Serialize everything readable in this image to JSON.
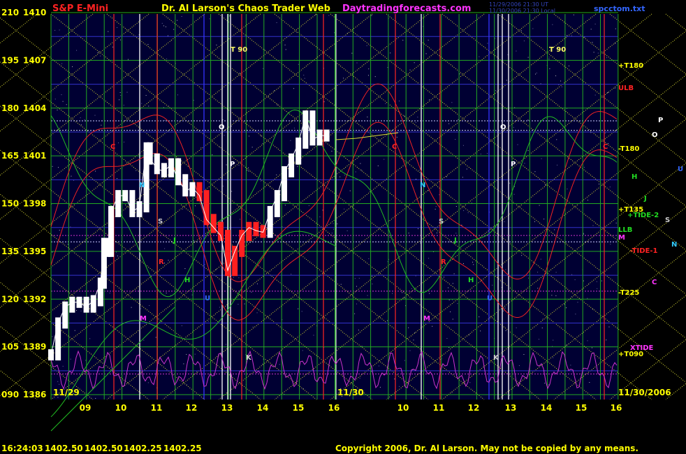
{
  "header": {
    "instrument": "S&P E-Mini",
    "site_title": "Dr. Al Larson's Chaos Trader Web",
    "site_url": "Daytradingforecasts.com",
    "stamp_line1": "11/29/2006 21:30 UT",
    "stamp_line2": "11/30/2006 21:30 Local",
    "filename": "spcctom.txt"
  },
  "footer": {
    "time": "16:24:03",
    "open": "1402.50",
    "high": "1402.50",
    "low": "1402.25",
    "close": "1402.25",
    "copyright": "Copyright 2006, Dr. Al Larson. May not be copied by any means."
  },
  "colors": {
    "background": "#000033",
    "price_up": "#ffffff",
    "price_down": "#ff2020",
    "grid_green": "#22aa22",
    "grid_blue": "#3333cc",
    "diag_yellow": "#dddd33",
    "red_wave": "#ee2222",
    "green_wave": "#22bb22",
    "magenta_wave": "#cc33cc",
    "label_yellow": "#ffff00",
    "label_red": "#ff2222",
    "label_pink": "#ff33ff"
  },
  "chart_data": {
    "type": "line",
    "y_axis_left_labels": [
      {
        "tide": "210",
        "price": "1410"
      },
      {
        "tide": "195",
        "price": "1407"
      },
      {
        "tide": "180",
        "price": "1404"
      },
      {
        "tide": "165",
        "price": "1401"
      },
      {
        "tide": "150",
        "price": "1398"
      },
      {
        "tide": "135",
        "price": "1395"
      },
      {
        "tide": "120",
        "price": "1392"
      },
      {
        "tide": "105",
        "price": "1389"
      },
      {
        "tide": "090",
        "price": "1386"
      }
    ],
    "ylim_price": [
      1386,
      1410
    ],
    "x_tick_labels": [
      "09",
      "10",
      "11",
      "12",
      "13",
      "14",
      "15",
      "16",
      "10",
      "11",
      "12",
      "13",
      "14",
      "15",
      "16"
    ],
    "day_labels": [
      "11/29",
      "11/30",
      "11/30/2006"
    ],
    "price_series": {
      "name": "S&P E-Mini 11/29",
      "x_hours": [
        8.3,
        8.5,
        8.7,
        8.9,
        9.1,
        9.3,
        9.5,
        9.7,
        9.8,
        9.9,
        10.0,
        10.2,
        10.4,
        10.6,
        10.8,
        11.0,
        11.1,
        11.3,
        11.5,
        11.7,
        11.9,
        12.1,
        12.3,
        12.5,
        12.7,
        12.9,
        13.1,
        13.3,
        13.5,
        13.7,
        13.9,
        14.1,
        14.3,
        14.5,
        14.7,
        14.9,
        15.1,
        15.3,
        15.5,
        15.7,
        15.9,
        16.1
      ],
      "prices": [
        1388.5,
        1390.5,
        1391.5,
        1391.8,
        1391.8,
        1391.5,
        1391.9,
        1393,
        1395.5,
        1395,
        1397.5,
        1398.5,
        1398.5,
        1397.5,
        1397.8,
        1401.5,
        1400.8,
        1400.2,
        1400.0,
        1400.5,
        1399.5,
        1398.8,
        1399.0,
        1398.5,
        1397.0,
        1396.5,
        1396.0,
        1393.8,
        1395.0,
        1396.0,
        1396.5,
        1396.3,
        1396.2,
        1397.5,
        1398.5,
        1400.0,
        1400.8,
        1401.8,
        1403.5,
        1402.0,
        1402.3,
        1402.25
      ]
    },
    "right_labels": [
      {
        "text": "+T180",
        "color": "#ffff00"
      },
      {
        "text": "ULB",
        "color": "#ff2222"
      },
      {
        "text": "-T180",
        "color": "#ffff00"
      },
      {
        "text": "+T135",
        "color": "#ffff00"
      },
      {
        "text": "+TIDE-2",
        "color": "#22dd22"
      },
      {
        "text": "LLB",
        "color": "#22dd22"
      },
      {
        "text": "M",
        "color": "#ff33ff"
      },
      {
        "text": "-TIDE-1",
        "color": "#ff2222"
      },
      {
        "text": "-T225",
        "color": "#ffff00"
      },
      {
        "text": "XTIDE",
        "color": "#ff33ff"
      },
      {
        "text": "+T090",
        "color": "#ffff00"
      }
    ],
    "outer_letters": [
      {
        "text": "P",
        "color": "#ffffff"
      },
      {
        "text": "O",
        "color": "#ffffff"
      },
      {
        "text": "U",
        "color": "#3366ff"
      },
      {
        "text": "H",
        "color": "#22dd22"
      },
      {
        "text": "J",
        "color": "#22dd22"
      },
      {
        "text": "S",
        "color": "#cccccc"
      },
      {
        "text": "N",
        "color": "#33ccff"
      },
      {
        "text": "C",
        "color": "#ff33ff"
      }
    ],
    "in_chart_letters": [
      {
        "text": "T 90",
        "color": "#ffff66"
      },
      {
        "text": "T 90",
        "color": "#ffff66"
      },
      {
        "text": "O",
        "color": "#ffffff"
      },
      {
        "text": "O",
        "color": "#ffffff"
      },
      {
        "text": "P",
        "color": "#ffffff"
      },
      {
        "text": "P",
        "color": "#ffffff"
      },
      {
        "text": "C",
        "color": "#ff2222"
      },
      {
        "text": "C",
        "color": "#ff2222"
      },
      {
        "text": "C",
        "color": "#ff2222"
      },
      {
        "text": "N",
        "color": "#33ccff"
      },
      {
        "text": "N",
        "color": "#33ccff"
      },
      {
        "text": "R",
        "color": "#ff2222"
      },
      {
        "text": "R",
        "color": "#ff2222"
      },
      {
        "text": "H",
        "color": "#22dd22"
      },
      {
        "text": "H",
        "color": "#22dd22"
      },
      {
        "text": "M",
        "color": "#ff33ff"
      },
      {
        "text": "M",
        "color": "#ff33ff"
      },
      {
        "text": "S",
        "color": "#cccccc"
      },
      {
        "text": "S",
        "color": "#cccccc"
      },
      {
        "text": "J",
        "color": "#22dd22"
      },
      {
        "text": "J",
        "color": "#22dd22"
      },
      {
        "text": "U",
        "color": "#3366ff"
      },
      {
        "text": "U",
        "color": "#3366ff"
      },
      {
        "text": "K",
        "color": "#cccccc"
      },
      {
        "text": "K",
        "color": "#cccccc"
      }
    ]
  }
}
